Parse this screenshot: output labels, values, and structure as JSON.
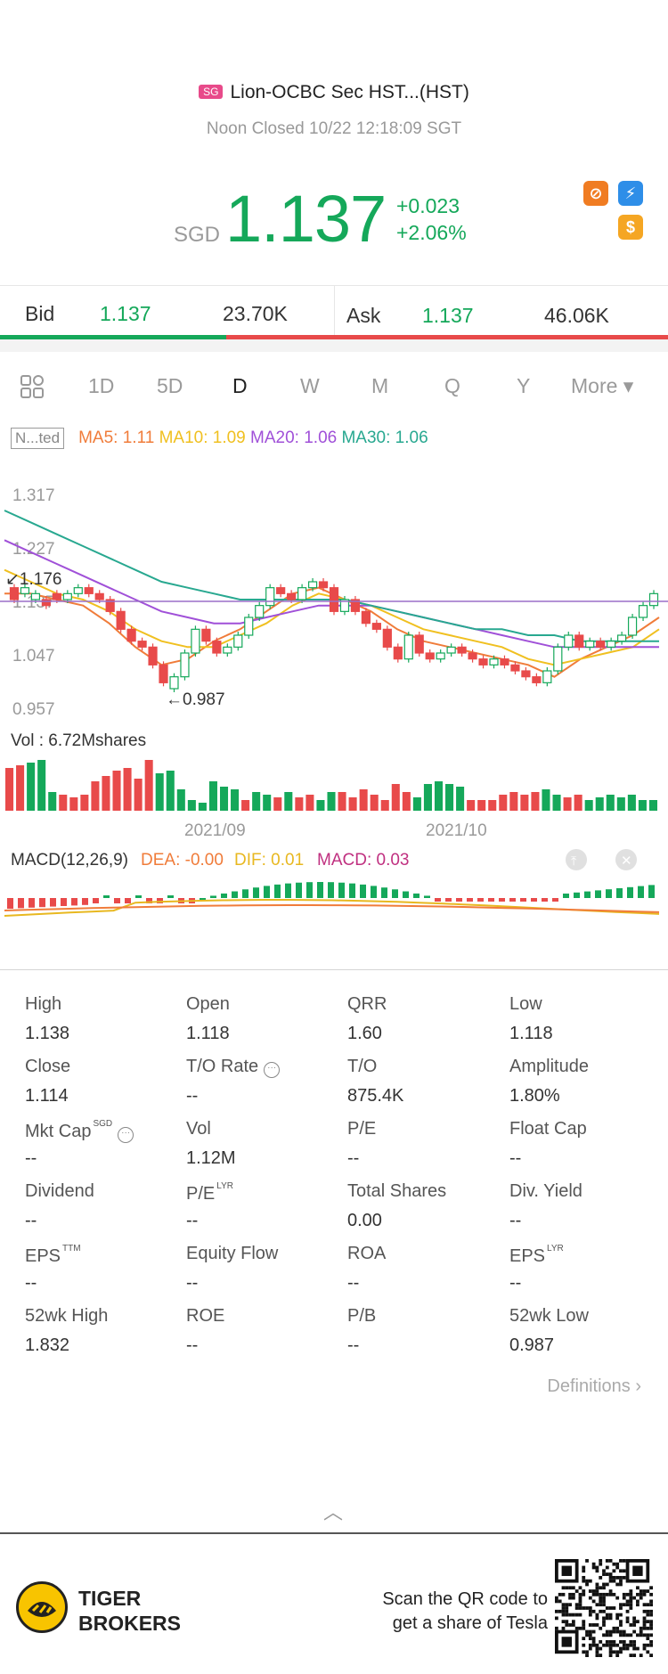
{
  "header": {
    "market_flag": "SG",
    "title": "Lion-OCBC Sec HST...(HST)",
    "status": "Noon Closed 10/22 12:18:09 SGT"
  },
  "quote": {
    "currency": "SGD",
    "price": "1.137",
    "change": "+0.023",
    "change_pct": "+2.06%",
    "badges": [
      {
        "icon": "no-short-icon",
        "color": "#f07c22",
        "symbol": "⊘"
      },
      {
        "icon": "lightning-l1-icon",
        "color": "#2e8ee8",
        "symbol": "⚡"
      },
      {
        "icon": "dollar-icon",
        "color": "#f5a623",
        "symbol": "$"
      }
    ]
  },
  "bidask": {
    "bid_label": "Bid",
    "bid_price": "1.137",
    "bid_size": "23.70K",
    "ask_label": "Ask",
    "ask_price": "1.137",
    "ask_size": "46.06K",
    "bid_fraction": 0.34
  },
  "tabs": [
    "1D",
    "5D",
    "D",
    "W",
    "M",
    "Q",
    "Y",
    "More ▾"
  ],
  "active_tab": "D",
  "ma_legend": {
    "adjust_label": "N...ted",
    "ma5": "MA5: 1.11",
    "ma10": "MA10: 1.09",
    "ma20": "MA20: 1.06",
    "ma30": "MA30: 1.06",
    "colors": {
      "ma5": "#f07c3a",
      "ma10": "#f0c020",
      "ma20": "#a050d8",
      "ma30": "#28a890"
    }
  },
  "chart_data": {
    "type": "candlestick",
    "price_axis": [
      "1.317",
      "1.227",
      "1.137",
      "1.047",
      "0.957"
    ],
    "ylim": [
      0.957,
      1.317
    ],
    "high_marker": "1.176",
    "low_marker": "0.987",
    "current_line": 1.137,
    "x_labels": [
      "2021/09",
      "2021/10"
    ],
    "candles": [
      [
        1.16,
        1.14
      ],
      [
        1.15,
        1.16
      ],
      [
        1.14,
        1.15
      ],
      [
        1.14,
        1.13
      ],
      [
        1.15,
        1.14
      ],
      [
        1.14,
        1.15
      ],
      [
        1.15,
        1.16
      ],
      [
        1.16,
        1.15
      ],
      [
        1.15,
        1.14
      ],
      [
        1.14,
        1.12
      ],
      [
        1.12,
        1.09
      ],
      [
        1.09,
        1.07
      ],
      [
        1.07,
        1.06
      ],
      [
        1.06,
        1.03
      ],
      [
        1.03,
        1.0
      ],
      [
        0.99,
        1.01
      ],
      [
        1.01,
        1.05
      ],
      [
        1.05,
        1.09
      ],
      [
        1.09,
        1.07
      ],
      [
        1.07,
        1.05
      ],
      [
        1.05,
        1.06
      ],
      [
        1.06,
        1.08
      ],
      [
        1.08,
        1.11
      ],
      [
        1.11,
        1.13
      ],
      [
        1.13,
        1.16
      ],
      [
        1.16,
        1.15
      ],
      [
        1.15,
        1.14
      ],
      [
        1.14,
        1.16
      ],
      [
        1.16,
        1.17
      ],
      [
        1.17,
        1.16
      ],
      [
        1.16,
        1.12
      ],
      [
        1.12,
        1.14
      ],
      [
        1.14,
        1.12
      ],
      [
        1.12,
        1.1
      ],
      [
        1.1,
        1.09
      ],
      [
        1.09,
        1.06
      ],
      [
        1.06,
        1.04
      ],
      [
        1.04,
        1.08
      ],
      [
        1.08,
        1.05
      ],
      [
        1.05,
        1.04
      ],
      [
        1.04,
        1.05
      ],
      [
        1.05,
        1.06
      ],
      [
        1.06,
        1.05
      ],
      [
        1.05,
        1.04
      ],
      [
        1.04,
        1.03
      ],
      [
        1.03,
        1.04
      ],
      [
        1.04,
        1.03
      ],
      [
        1.03,
        1.02
      ],
      [
        1.02,
        1.01
      ],
      [
        1.01,
        1.0
      ],
      [
        1.0,
        1.02
      ],
      [
        1.02,
        1.06
      ],
      [
        1.06,
        1.08
      ],
      [
        1.08,
        1.06
      ],
      [
        1.06,
        1.07
      ],
      [
        1.07,
        1.06
      ],
      [
        1.06,
        1.07
      ],
      [
        1.07,
        1.08
      ],
      [
        1.08,
        1.11
      ],
      [
        1.11,
        1.13
      ],
      [
        1.13,
        1.15
      ]
    ],
    "ma": {
      "ma5": [
        1.15,
        1.15,
        1.14,
        1.13,
        1.1,
        1.06,
        1.03,
        1.04,
        1.07,
        1.09,
        1.12,
        1.15,
        1.16,
        1.14,
        1.12,
        1.09,
        1.07,
        1.06,
        1.05,
        1.04,
        1.03,
        1.01,
        1.04,
        1.06,
        1.08,
        1.11
      ],
      "ma10": [
        1.19,
        1.17,
        1.15,
        1.14,
        1.12,
        1.09,
        1.07,
        1.06,
        1.06,
        1.08,
        1.1,
        1.13,
        1.15,
        1.14,
        1.13,
        1.11,
        1.09,
        1.08,
        1.07,
        1.06,
        1.04,
        1.03,
        1.04,
        1.05,
        1.06,
        1.09
      ],
      "ma20": [
        1.24,
        1.22,
        1.2,
        1.18,
        1.16,
        1.14,
        1.12,
        1.11,
        1.1,
        1.1,
        1.11,
        1.12,
        1.13,
        1.13,
        1.13,
        1.12,
        1.11,
        1.1,
        1.09,
        1.08,
        1.07,
        1.06,
        1.06,
        1.06,
        1.06,
        1.06
      ],
      "ma30": [
        1.29,
        1.27,
        1.25,
        1.23,
        1.21,
        1.19,
        1.17,
        1.16,
        1.15,
        1.14,
        1.14,
        1.14,
        1.14,
        1.14,
        1.13,
        1.12,
        1.11,
        1.1,
        1.09,
        1.09,
        1.08,
        1.08,
        1.07,
        1.07,
        1.07,
        1.07
      ]
    },
    "volume_label": "Vol  : 6.72Mshares",
    "volumes": [
      [
        0.8,
        "r"
      ],
      [
        0.85,
        "r"
      ],
      [
        0.9,
        "g"
      ],
      [
        0.95,
        "g"
      ],
      [
        0.35,
        "g"
      ],
      [
        0.3,
        "r"
      ],
      [
        0.25,
        "r"
      ],
      [
        0.3,
        "r"
      ],
      [
        0.55,
        "r"
      ],
      [
        0.65,
        "r"
      ],
      [
        0.75,
        "r"
      ],
      [
        0.8,
        "r"
      ],
      [
        0.6,
        "r"
      ],
      [
        0.95,
        "r"
      ],
      [
        0.7,
        "g"
      ],
      [
        0.75,
        "g"
      ],
      [
        0.4,
        "g"
      ],
      [
        0.2,
        "g"
      ],
      [
        0.15,
        "g"
      ],
      [
        0.55,
        "g"
      ],
      [
        0.45,
        "g"
      ],
      [
        0.4,
        "g"
      ],
      [
        0.2,
        "r"
      ],
      [
        0.35,
        "g"
      ],
      [
        0.3,
        "g"
      ],
      [
        0.25,
        "r"
      ],
      [
        0.35,
        "g"
      ],
      [
        0.25,
        "r"
      ],
      [
        0.3,
        "r"
      ],
      [
        0.2,
        "g"
      ],
      [
        0.35,
        "g"
      ],
      [
        0.35,
        "r"
      ],
      [
        0.25,
        "r"
      ],
      [
        0.4,
        "r"
      ],
      [
        0.3,
        "r"
      ],
      [
        0.2,
        "r"
      ],
      [
        0.5,
        "r"
      ],
      [
        0.35,
        "r"
      ],
      [
        0.25,
        "g"
      ],
      [
        0.5,
        "g"
      ],
      [
        0.55,
        "g"
      ],
      [
        0.5,
        "g"
      ],
      [
        0.45,
        "g"
      ],
      [
        0.2,
        "r"
      ],
      [
        0.2,
        "r"
      ],
      [
        0.2,
        "r"
      ],
      [
        0.3,
        "r"
      ],
      [
        0.35,
        "r"
      ],
      [
        0.3,
        "r"
      ],
      [
        0.35,
        "r"
      ],
      [
        0.4,
        "g"
      ],
      [
        0.3,
        "g"
      ],
      [
        0.25,
        "r"
      ],
      [
        0.3,
        "r"
      ],
      [
        0.2,
        "g"
      ],
      [
        0.25,
        "g"
      ],
      [
        0.3,
        "g"
      ],
      [
        0.25,
        "g"
      ],
      [
        0.3,
        "g"
      ],
      [
        0.2,
        "g"
      ],
      [
        0.2,
        "g"
      ]
    ],
    "macd_label": "MACD(12,26,9)",
    "dea": "DEA: -0.00",
    "dif": "DIF: 0.01",
    "macd": "MACD: 0.03"
  },
  "stats": [
    {
      "label": "High",
      "value": "1.138"
    },
    {
      "label": "Open",
      "value": "1.118"
    },
    {
      "label": "QRR",
      "value": "1.60"
    },
    {
      "label": "Low",
      "value": "1.118"
    },
    {
      "label": "Close",
      "value": "1.114"
    },
    {
      "label": "T/O Rate",
      "value": "--"
    },
    {
      "label": "T/O",
      "value": "875.4K"
    },
    {
      "label": "Amplitude",
      "value": "1.80%"
    },
    {
      "label": "Mkt Cap",
      "value": "--",
      "sup": "SGD"
    },
    {
      "label": "Vol",
      "value": "1.12M"
    },
    {
      "label": "P/E",
      "value": "--"
    },
    {
      "label": "Float Cap",
      "value": "--"
    },
    {
      "label": "Dividend",
      "value": "--"
    },
    {
      "label": "P/E",
      "value": "--",
      "sup": "LYR"
    },
    {
      "label": "Total Shares",
      "value": "0.00"
    },
    {
      "label": "Div. Yield",
      "value": "--"
    },
    {
      "label": "EPS",
      "value": "--",
      "sup": "TTM"
    },
    {
      "label": "Equity Flow",
      "value": "--"
    },
    {
      "label": "ROA",
      "value": "--"
    },
    {
      "label": "EPS",
      "value": "--",
      "sup": "LYR"
    },
    {
      "label": "52wk High",
      "value": "1.832"
    },
    {
      "label": "ROE",
      "value": "--"
    },
    {
      "label": "P/B",
      "value": "--"
    },
    {
      "label": "52wk Low",
      "value": "0.987"
    }
  ],
  "definitions_label": "Definitions",
  "footer": {
    "brand_line1": "TIGER",
    "brand_line2": "BROKERS",
    "scan_line1": "Scan the QR code to",
    "scan_line2": "get a share of Tesla"
  }
}
